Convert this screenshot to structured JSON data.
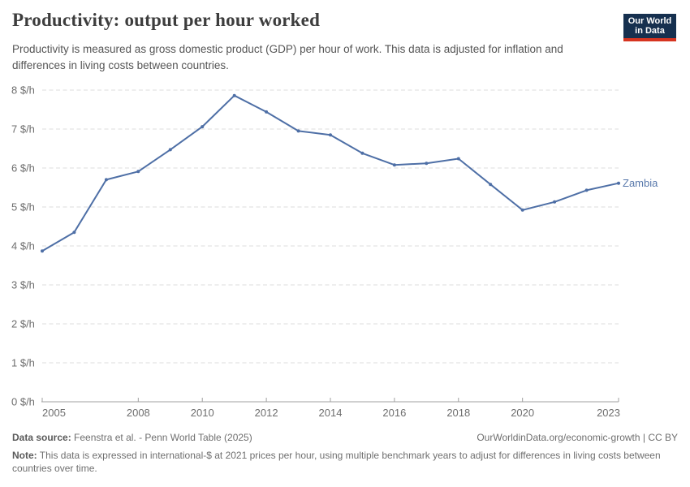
{
  "header": {
    "title": "Productivity: output per hour worked",
    "subtitle": "Productivity is measured as gross domestic product (GDP) per hour of work. This data is adjusted for inflation and differences in living costs between countries.",
    "logo": {
      "line1": "Our World",
      "line2": "in Data",
      "bg_color": "#16304f",
      "accent_color": "#d63420"
    }
  },
  "chart_data": {
    "type": "line",
    "title": "Productivity: output per hour worked",
    "xlabel": "",
    "ylabel": "$/h",
    "x": [
      2005,
      2006,
      2007,
      2008,
      2009,
      2010,
      2011,
      2012,
      2013,
      2014,
      2015,
      2016,
      2017,
      2018,
      2019,
      2020,
      2021,
      2022,
      2023
    ],
    "series": [
      {
        "name": "Zambia",
        "values": [
          3.87,
          4.35,
          5.7,
          5.91,
          6.47,
          7.06,
          7.86,
          7.44,
          6.95,
          6.85,
          6.38,
          6.08,
          6.12,
          6.24,
          5.58,
          4.92,
          5.13,
          5.43,
          5.61
        ]
      }
    ],
    "xlim": [
      2005,
      2023
    ],
    "ylim": [
      0,
      8
    ],
    "x_ticks": [
      2005,
      2008,
      2010,
      2012,
      2014,
      2016,
      2018,
      2020,
      2023
    ],
    "y_ticks": [
      0,
      1,
      2,
      3,
      4,
      5,
      6,
      7,
      8
    ],
    "y_tick_format": "{v} $/h",
    "grid": "horizontal dashed",
    "legend_position": "end-of-line label",
    "entity_label": "Zambia",
    "colors": {
      "line": "#4e6fa6",
      "entity_label": "#5878ab",
      "gridline": "#dcdcdc",
      "axis": "#a0a0a0",
      "tick_label": "#6e6e6e"
    }
  },
  "footer": {
    "source_label": "Data source:",
    "source_text": "Feenstra et al. - Penn World Table (2025)",
    "link_text": "OurWorldinData.org/economic-growth | CC BY",
    "note_label": "Note:",
    "note_text": "This data is expressed in international-$ at 2021 prices per hour, using multiple benchmark years to adjust for differences in living costs between countries over time."
  }
}
